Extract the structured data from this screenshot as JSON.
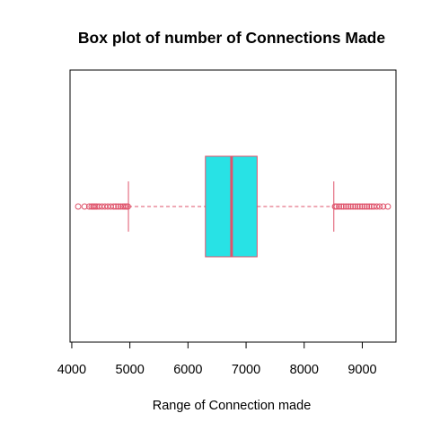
{
  "chart_data": {
    "type": "boxplot",
    "orientation": "horizontal",
    "title": "Box plot of number of Connections Made",
    "xlabel": "Range of Connection made",
    "xlim": [
      3970,
      9580
    ],
    "xticks": [
      4000,
      5000,
      6000,
      7000,
      8000,
      9000
    ],
    "xtick_labels": [
      "4000",
      "5000",
      "6000",
      "7000",
      "8000",
      "9000"
    ],
    "box": {
      "whisker_low": 4975,
      "q1": 6300,
      "median": 6750,
      "q3": 7190,
      "whisker_high": 8510
    },
    "outliers_low": [
      4110,
      4220,
      4300,
      4340,
      4370,
      4400,
      4430,
      4470,
      4520,
      4570,
      4620,
      4670,
      4720,
      4760,
      4800,
      4840,
      4880,
      4910,
      4940,
      4965
    ],
    "outliers_high": [
      8530,
      8560,
      8600,
      8640,
      8680,
      8720,
      8760,
      8800,
      8840,
      8880,
      8920,
      8960,
      9000,
      9040,
      9080,
      9120,
      9160,
      9200,
      9250,
      9300,
      9360,
      9440
    ],
    "colors": {
      "box_fill": "#28e2e5",
      "line": "#df536b",
      "frame": "#000000"
    }
  }
}
